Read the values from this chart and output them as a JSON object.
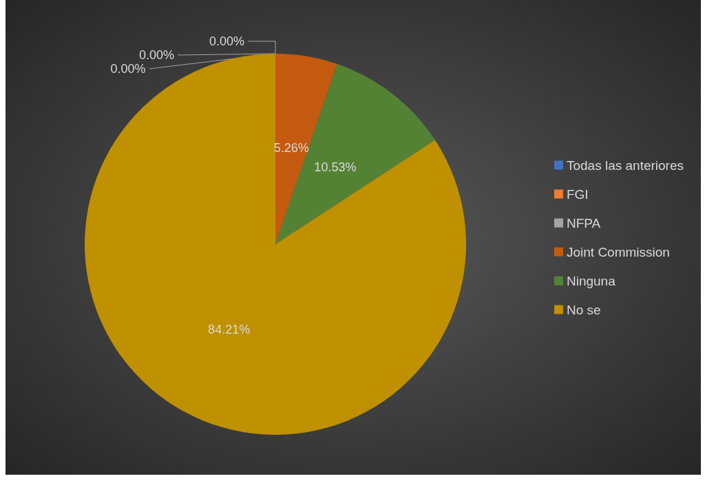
{
  "chart_data": {
    "type": "pie",
    "categories": [
      "Todas las anteriores",
      "FGI",
      "NFPA",
      "Joint Commission",
      "Ninguna",
      "No se"
    ],
    "values": [
      0,
      0,
      0,
      5.26,
      10.53,
      84.21
    ],
    "colors": [
      "#4472c4",
      "#ed7d31",
      "#a5a5a5",
      "#c55a11",
      "#548235",
      "#bf9000"
    ],
    "value_labels": [
      "0.00%",
      "0.00%",
      "0.00%",
      "5.26%",
      "10.53%",
      "84.21%"
    ],
    "legend": "right"
  }
}
